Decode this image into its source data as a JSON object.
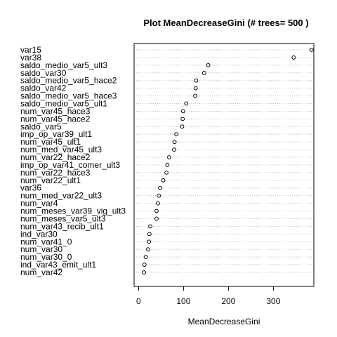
{
  "chart_data": {
    "type": "scatter",
    "title": "Plot MeanDecreaseGini (# trees=  500 )",
    "xlabel": "MeanDecreaseGini",
    "ylabel": "",
    "xlim": [
      -10,
      390
    ],
    "xticks": [
      0,
      100,
      200,
      300
    ],
    "xtick_labels": [
      "0",
      "100",
      "200",
      "300"
    ],
    "grid": "dotted horizontal lines per variable",
    "marker": "open circle",
    "categories": [
      "var15",
      "var38",
      "saldo_medio_var5_ult3",
      "saldo_var30",
      "saldo_medio_var5_hace2",
      "saldo_var42",
      "saldo_medio_var5_hace3",
      "saldo_medio_var5_ult1",
      "num_var45_hace3",
      "num_var45_hace2",
      "saldo_var5",
      "imp_op_var39_ult1",
      "num_var45_ult1",
      "num_med_var45_ult3",
      "num_var22_hace2",
      "imp_op_var41_comer_ult3",
      "num_var22_hace3",
      "num_var22_ult1",
      "var36",
      "num_med_var22_ult3",
      "num_var4",
      "num_meses_var39_vig_ult3",
      "num_meses_var5_ult3",
      "num_var43_recib_ult1",
      "ind_var30",
      "num_var41_0",
      "num_var30",
      "num_var30_0",
      "ind_var43_emit_ult1",
      "num_var42"
    ],
    "values": [
      385,
      345,
      155,
      146,
      128,
      127,
      126,
      106,
      99,
      98,
      97,
      84,
      80,
      79,
      68,
      64,
      62,
      55,
      48,
      45,
      43,
      40,
      40,
      26,
      24,
      23,
      21,
      16,
      13,
      12
    ]
  }
}
